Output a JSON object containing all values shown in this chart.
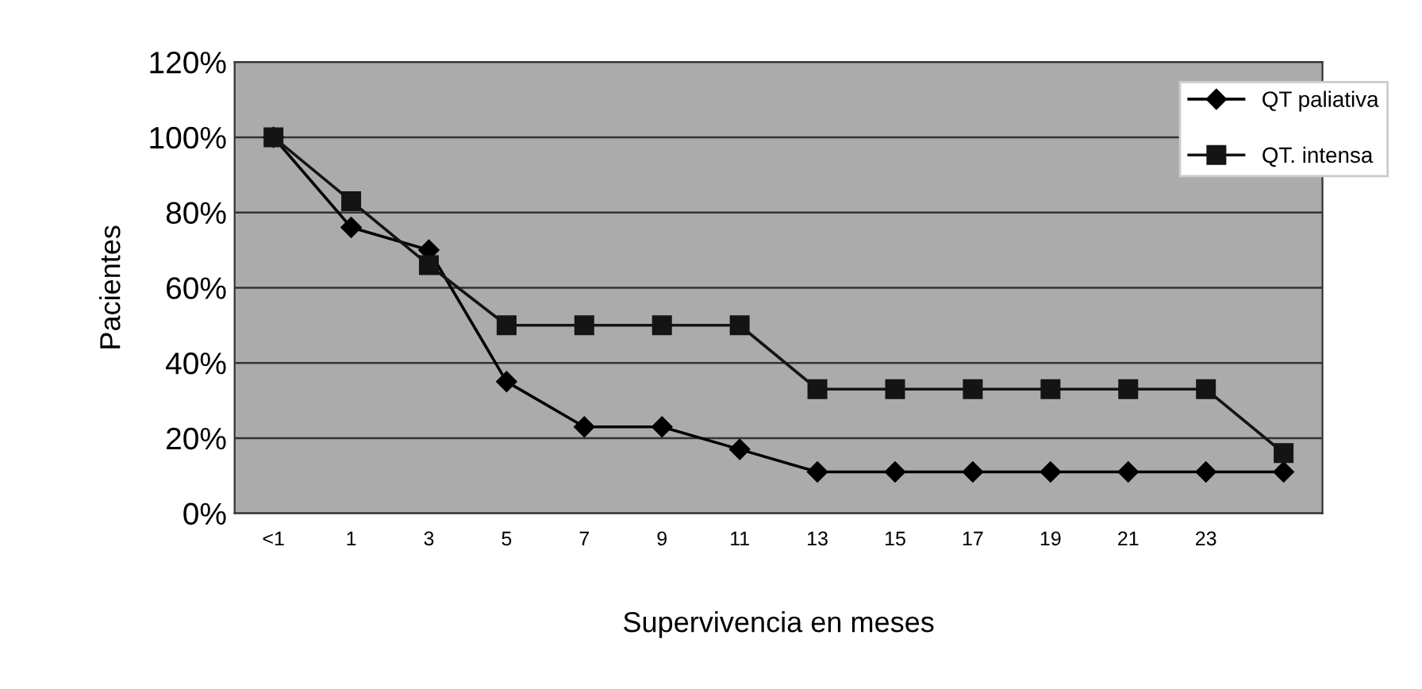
{
  "chart_data": {
    "type": "line",
    "xlabel": "Supervivencia en meses",
    "ylabel": "Pacientes",
    "categories": [
      "<1",
      "1",
      "3",
      "5",
      "7",
      "9",
      "11",
      "13",
      "15",
      "17",
      "19",
      "21",
      "23",
      null
    ],
    "series": [
      {
        "name": "QT paliativa",
        "color": "#000000",
        "marker": "diamond",
        "values": [
          100,
          76,
          70,
          35,
          23,
          23,
          17,
          11,
          11,
          11,
          11,
          11,
          11,
          11
        ]
      },
      {
        "name": "QT. intensa",
        "color": "#141414",
        "marker": "square",
        "values": [
          100,
          83,
          66,
          50,
          50,
          50,
          50,
          33,
          33,
          33,
          33,
          33,
          33,
          16
        ]
      }
    ],
    "ylim": [
      0,
      120
    ],
    "yticks": [
      {
        "value": 0,
        "label": "0%"
      },
      {
        "value": 20,
        "label": "20%"
      },
      {
        "value": 40,
        "label": "40%"
      },
      {
        "value": 60,
        "label": "60%"
      },
      {
        "value": 80,
        "label": "80%"
      },
      {
        "value": 100,
        "label": "100%"
      },
      {
        "value": 120,
        "label": "120%"
      }
    ],
    "grid": "y",
    "legend": "top right",
    "line_style": "solid"
  }
}
